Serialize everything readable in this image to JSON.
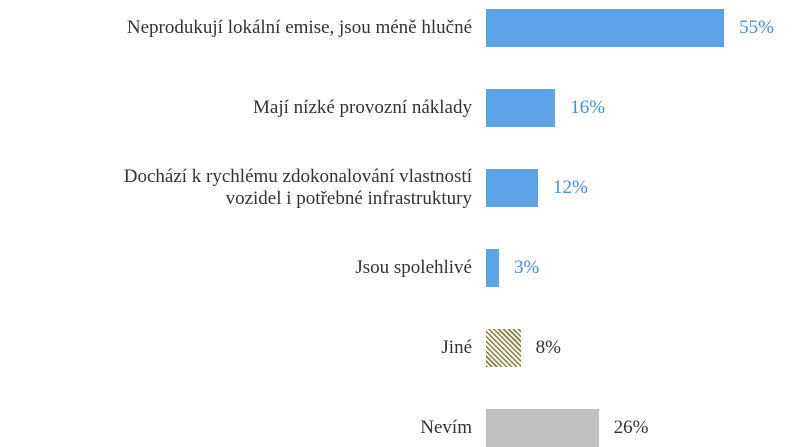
{
  "chart_data": {
    "type": "barh",
    "categories": [
      "Neprodukují lokální emise, jsou méně hlučné",
      "Mají nízké provozní náklady",
      "Dochází k rychlému zdokonalování vlastností\nvozidel i potřebné infrastruktury",
      "Jsou spolehlivé",
      "Jiné",
      "Nevím"
    ],
    "values": [
      55,
      16,
      12,
      3,
      8,
      26
    ],
    "value_labels": [
      "55%",
      "16%",
      "12%",
      "3%",
      "8%",
      "26%"
    ],
    "colors": [
      "#5ba3e6",
      "#5ba3e6",
      "#5ba3e6",
      "#5ba3e6",
      "#8b7d3a",
      "#c0c0c0"
    ],
    "hatch": [
      false,
      false,
      false,
      false,
      true,
      false
    ],
    "label_colors": [
      "#4a8fd6",
      "#4a8fd6",
      "#4a8fd6",
      "#4a8fd6",
      "#333333",
      "#333333"
    ]
  }
}
